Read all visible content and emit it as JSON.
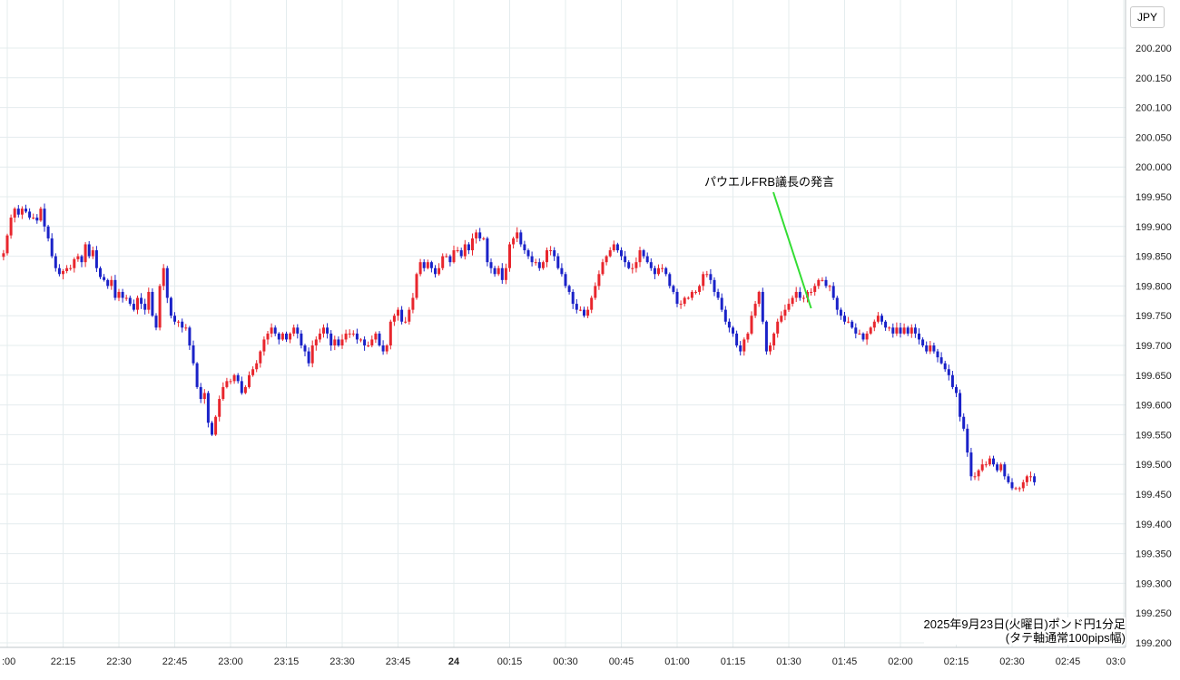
{
  "currency_label": "JPY",
  "caption": {
    "line1": "2025年9月23日(火曜日)ポンド円1分足",
    "line2": "(タテ軸通常100pips幅)"
  },
  "annotation": {
    "text": "パウエルFRB議長の発言",
    "line_color": "#33dd33"
  },
  "colors": {
    "up": "#e8262d",
    "down": "#1a22c8",
    "grid": "#e4ecee",
    "background": "#ffffff"
  },
  "chart_data": {
    "type": "candlestick",
    "title": "",
    "xlabel": "",
    "ylabel": "",
    "ylim": [
      199.2,
      200.2
    ],
    "y_ticks": [
      "200.200",
      "200.150",
      "200.100",
      "200.050",
      "200.000",
      "199.950",
      "199.900",
      "199.850",
      "199.800",
      "199.750",
      "199.700",
      "199.650",
      "199.600",
      "199.550",
      "199.500",
      "199.450",
      "199.400",
      "199.350",
      "199.300",
      "199.250",
      "199.200"
    ],
    "x_ticks": [
      ":00",
      "22:15",
      "22:30",
      "22:45",
      "23:00",
      "23:15",
      "23:30",
      "23:45",
      "24",
      "00:15",
      "00:30",
      "00:45",
      "01:00",
      "01:15",
      "01:30",
      "01:45",
      "02:00",
      "02:15",
      "02:30",
      "02:45",
      "03:0"
    ],
    "x_tick_minutes": [
      0,
      15,
      30,
      45,
      60,
      75,
      90,
      105,
      120,
      135,
      150,
      165,
      180,
      195,
      210,
      225,
      240,
      255,
      270,
      285,
      300
    ],
    "annotation_minute": 216,
    "start_minute": -1,
    "close_series": [
      199.855,
      199.885,
      199.915,
      199.93,
      199.92,
      199.93,
      199.925,
      199.915,
      199.915,
      199.91,
      199.93,
      199.9,
      199.88,
      199.85,
      199.83,
      199.82,
      199.825,
      199.83,
      199.83,
      199.845,
      199.85,
      199.84,
      199.87,
      199.85,
      199.86,
      199.83,
      199.815,
      199.81,
      199.8,
      199.81,
      199.78,
      199.79,
      199.78,
      199.78,
      199.77,
      199.76,
      199.78,
      199.77,
      199.76,
      199.79,
      199.75,
      199.73,
      199.8,
      199.83,
      199.78,
      199.75,
      199.74,
      199.74,
      199.73,
      199.73,
      199.7,
      199.67,
      199.63,
      199.61,
      199.62,
      199.57,
      199.55,
      199.58,
      199.61,
      199.63,
      199.64,
      199.64,
      199.65,
      199.64,
      199.62,
      199.63,
      199.65,
      199.66,
      199.67,
      199.69,
      199.71,
      199.72,
      199.73,
      199.72,
      199.71,
      199.72,
      199.71,
      199.72,
      199.73,
      199.72,
      199.7,
      199.69,
      199.67,
      199.7,
      199.71,
      199.72,
      199.73,
      199.72,
      199.7,
      199.71,
      199.7,
      199.71,
      199.72,
      199.72,
      199.72,
      199.71,
      199.71,
      199.7,
      199.7,
      199.71,
      199.72,
      199.7,
      199.69,
      199.7,
      199.74,
      199.75,
      199.76,
      199.74,
      199.74,
      199.76,
      199.78,
      199.82,
      199.84,
      199.83,
      199.84,
      199.83,
      199.82,
      199.83,
      199.85,
      199.85,
      199.84,
      199.86,
      199.86,
      199.85,
      199.87,
      199.86,
      199.88,
      199.89,
      199.88,
      199.88,
      199.84,
      199.83,
      199.82,
      199.83,
      199.81,
      199.83,
      199.87,
      199.88,
      199.89,
      199.87,
      199.86,
      199.85,
      199.84,
      199.84,
      199.83,
      199.84,
      199.86,
      199.86,
      199.85,
      199.83,
      199.82,
      199.8,
      199.79,
      199.77,
      199.76,
      199.76,
      199.75,
      199.76,
      199.78,
      199.8,
      199.82,
      199.84,
      199.85,
      199.86,
      199.87,
      199.86,
      199.85,
      199.84,
      199.83,
      199.83,
      199.84,
      199.86,
      199.85,
      199.84,
      199.83,
      199.82,
      199.83,
      199.83,
      199.82,
      199.8,
      199.79,
      199.77,
      199.77,
      199.78,
      199.78,
      199.79,
      199.79,
      199.8,
      199.82,
      199.82,
      199.81,
      199.79,
      199.78,
      199.76,
      199.74,
      199.73,
      199.72,
      199.7,
      199.69,
      199.71,
      199.72,
      199.75,
      199.77,
      199.79,
      199.74,
      199.69,
      199.7,
      199.72,
      199.74,
      199.75,
      199.76,
      199.77,
      199.78,
      199.79,
      199.78,
      199.78,
      199.79,
      199.79,
      199.8,
      199.81,
      199.81,
      199.8,
      199.8,
      199.78,
      199.76,
      199.75,
      199.74,
      199.74,
      199.73,
      199.72,
      199.72,
      199.71,
      199.72,
      199.73,
      199.74,
      199.75,
      199.74,
      199.73,
      199.73,
      199.72,
      199.73,
      199.72,
      199.73,
      199.72,
      199.73,
      199.72,
      199.71,
      199.7,
      199.69,
      199.7,
      199.69,
      199.68,
      199.67,
      199.66,
      199.65,
      199.63,
      199.62,
      199.58,
      199.56,
      199.52,
      199.48,
      199.48,
      199.49,
      199.5,
      199.5,
      199.51,
      199.5,
      199.49,
      199.5,
      199.48,
      199.47,
      199.46,
      199.46,
      199.46,
      199.47,
      199.48,
      199.48,
      199.47
    ]
  }
}
